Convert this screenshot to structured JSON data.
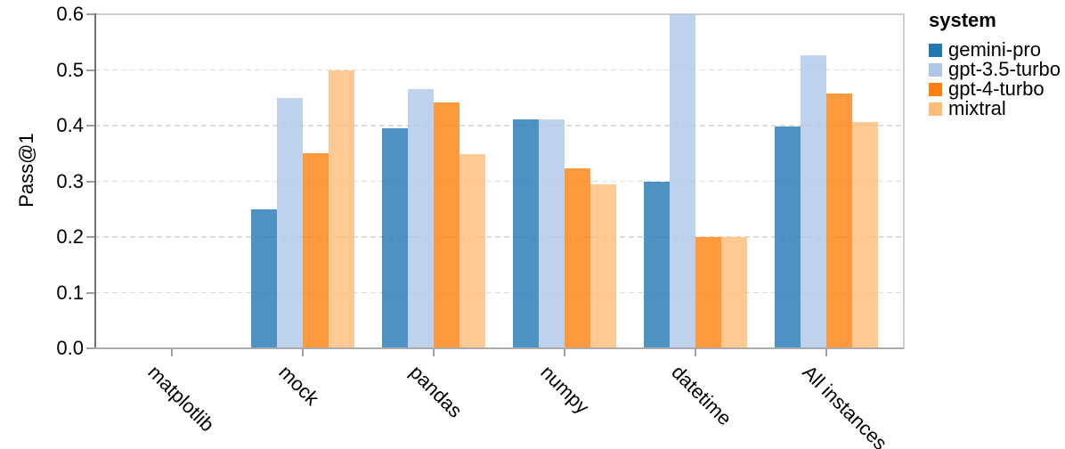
{
  "figure": {
    "background_color": "#ffffff"
  },
  "chart_data": {
    "type": "bar",
    "title": "",
    "xlabel": "",
    "ylabel": "Pass@1",
    "ylim": [
      0,
      0.6
    ],
    "yticks": [
      0.0,
      0.1,
      0.2,
      0.3,
      0.4,
      0.5,
      0.6
    ],
    "grid": "horizontal-dashed",
    "bar_alpha": 0.8,
    "categories": [
      "matplotlib",
      "mock",
      "pandas",
      "numpy",
      "datetime",
      "All instances"
    ],
    "series": [
      {
        "name": "gemini-pro",
        "color": "#1f77b4",
        "values": [
          0,
          0.25,
          0.395,
          0.412,
          0.3,
          0.398
        ]
      },
      {
        "name": "gpt-3.5-turbo",
        "color": "#aec7e8",
        "values": [
          0,
          0.45,
          0.465,
          0.412,
          0.6,
          0.527
        ]
      },
      {
        "name": "gpt-4-turbo",
        "color": "#ff7f0e",
        "values": [
          0,
          0.35,
          0.442,
          0.324,
          0.2,
          0.457
        ]
      },
      {
        "name": "mixtral",
        "color": "#ffbb78",
        "values": [
          0,
          0.5,
          0.349,
          0.294,
          0.2,
          0.406
        ]
      }
    ],
    "legend": {
      "title": "system",
      "position": "right"
    }
  }
}
